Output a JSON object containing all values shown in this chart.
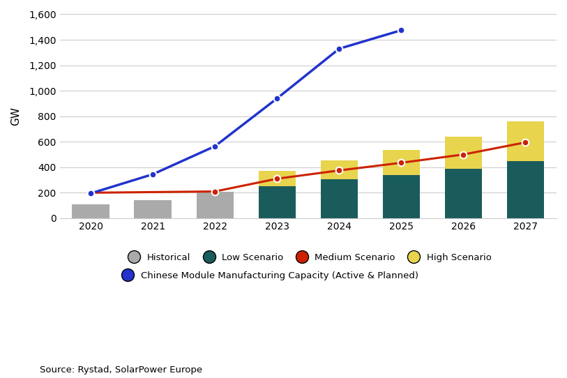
{
  "years": [
    2020,
    2021,
    2022,
    2023,
    2024,
    2025,
    2026,
    2027
  ],
  "historical_values": [
    110,
    140,
    205,
    null,
    null,
    null,
    null,
    null
  ],
  "low_scenario": [
    null,
    null,
    null,
    250,
    305,
    340,
    390,
    450
  ],
  "high_scenario_total": [
    null,
    null,
    null,
    370,
    455,
    535,
    640,
    760
  ],
  "medium_line": [
    200,
    null,
    210,
    310,
    375,
    435,
    500,
    595
  ],
  "chinese_capacity": [
    195,
    345,
    565,
    940,
    1330,
    1475,
    null,
    null
  ],
  "bar_color_historical": "#aaaaaa",
  "bar_color_low": "#1a5c5c",
  "bar_color_high": "#e8d44d",
  "line_color_medium": "#cc2200",
  "line_color_chinese": "#2233cc",
  "ylabel": "GW",
  "ylim": [
    0,
    1600
  ],
  "yticks": [
    0,
    200,
    400,
    600,
    800,
    1000,
    1200,
    1400,
    1600
  ],
  "source_text": "Source: Rystad, SolarPower Europe",
  "legend_historical": "Historical",
  "legend_low": "Low Scenario",
  "legend_medium": "Medium Scenario",
  "legend_high": "High Scenario",
  "legend_chinese": "Chinese Module Manufacturing Capacity (Active & Planned)",
  "background_color": "#ffffff",
  "grid_color": "#cccccc"
}
